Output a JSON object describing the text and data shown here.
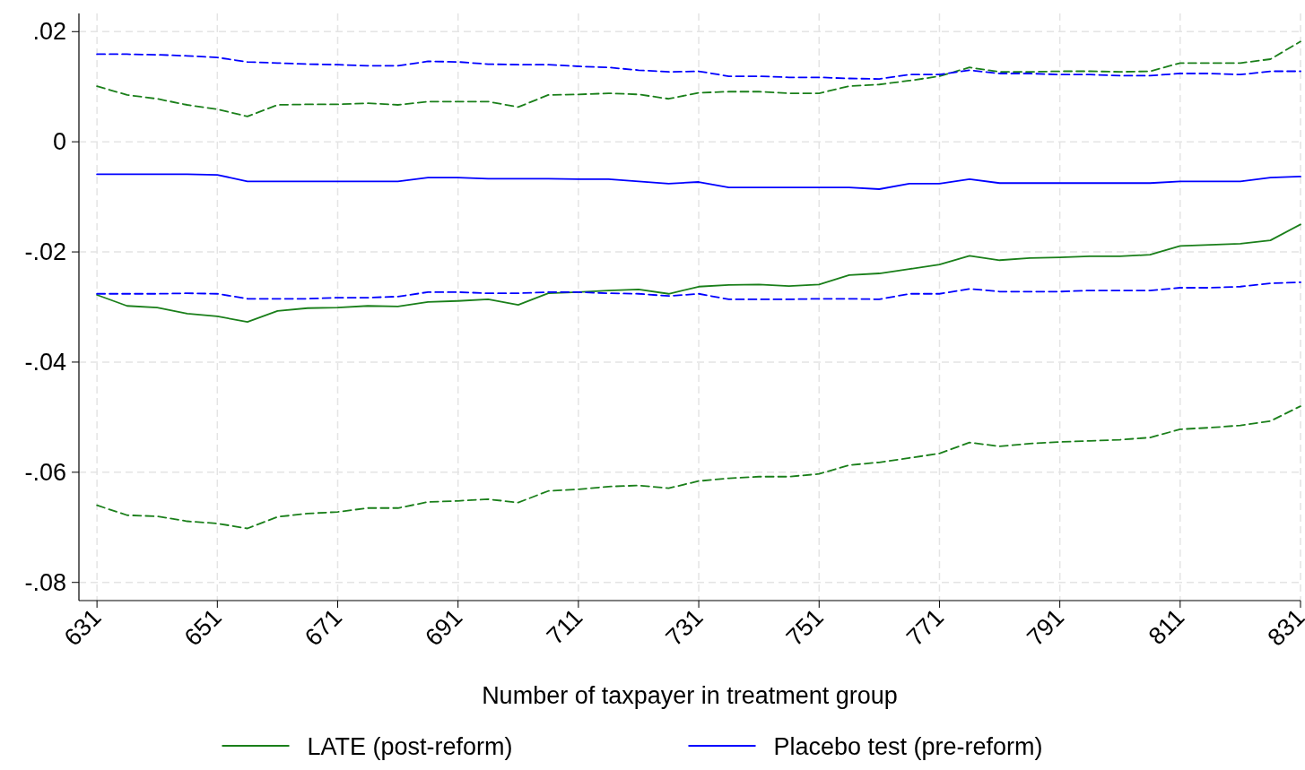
{
  "chart_data": {
    "type": "line",
    "xlabel": "Number of taxpayer in treatment group",
    "x": [
      631,
      636,
      641,
      646,
      651,
      656,
      661,
      666,
      671,
      676,
      681,
      686,
      691,
      696,
      701,
      706,
      711,
      716,
      721,
      726,
      731,
      736,
      741,
      746,
      751,
      756,
      761,
      766,
      771,
      776,
      781,
      786,
      791,
      796,
      801,
      806,
      811,
      816,
      821,
      826,
      831
    ],
    "xlim": [
      628,
      831
    ],
    "xticks": [
      631,
      651,
      671,
      691,
      711,
      731,
      751,
      771,
      791,
      811,
      831
    ],
    "ylim": [
      -0.0833,
      0.0233
    ],
    "yticks": [
      {
        "value": 0.02,
        "label": ".02"
      },
      {
        "value": 0,
        "label": "0"
      },
      {
        "value": -0.02,
        "label": "-.02"
      },
      {
        "value": -0.04,
        "label": "-.04"
      },
      {
        "value": -0.06,
        "label": "-.06"
      },
      {
        "value": -0.08,
        "label": "-.08"
      }
    ],
    "grid": true,
    "legend": "bottom",
    "series": [
      {
        "name": "LATE (post-reform)",
        "color": "#1a7f1a",
        "line_style": "solid",
        "values": [
          -0.0278,
          -0.0298,
          -0.0301,
          -0.0312,
          -0.0317,
          -0.0327,
          -0.0307,
          -0.0302,
          -0.0301,
          -0.0298,
          -0.0299,
          -0.0291,
          -0.0289,
          -0.0286,
          -0.0296,
          -0.0275,
          -0.0273,
          -0.027,
          -0.0268,
          -0.0276,
          -0.0263,
          -0.026,
          -0.0259,
          -0.0262,
          -0.0259,
          -0.0242,
          -0.0239,
          -0.0231,
          -0.0223,
          -0.0207,
          -0.0215,
          -0.0211,
          -0.021,
          -0.0208,
          -0.0208,
          -0.0205,
          -0.0189,
          -0.0187,
          -0.0185,
          -0.0179,
          -0.015
        ]
      },
      {
        "color": "#1a7f1a",
        "line_style": "dashed",
        "values": [
          0.0101,
          0.0085,
          0.0078,
          0.0067,
          0.0059,
          0.0046,
          0.0067,
          0.0068,
          0.0068,
          0.007,
          0.0067,
          0.0073,
          0.0073,
          0.0073,
          0.0063,
          0.0085,
          0.0086,
          0.0088,
          0.0086,
          0.0078,
          0.0089,
          0.0091,
          0.0091,
          0.0088,
          0.0088,
          0.0101,
          0.0104,
          0.0111,
          0.0119,
          0.0135,
          0.0127,
          0.0127,
          0.0128,
          0.0128,
          0.0127,
          0.0128,
          0.0143,
          0.0143,
          0.0143,
          0.015,
          0.0182
        ]
      },
      {
        "color": "#1a7f1a",
        "line_style": "dashed",
        "values": [
          -0.066,
          -0.0678,
          -0.068,
          -0.0689,
          -0.0693,
          -0.0702,
          -0.0681,
          -0.0675,
          -0.0672,
          -0.0665,
          -0.0665,
          -0.0654,
          -0.0652,
          -0.0649,
          -0.0655,
          -0.0634,
          -0.0631,
          -0.0626,
          -0.0624,
          -0.0629,
          -0.0616,
          -0.0611,
          -0.0608,
          -0.0608,
          -0.0603,
          -0.0587,
          -0.0582,
          -0.0574,
          -0.0566,
          -0.0546,
          -0.0553,
          -0.0548,
          -0.0545,
          -0.0543,
          -0.0541,
          -0.0537,
          -0.0522,
          -0.0519,
          -0.0515,
          -0.0507,
          -0.048
        ]
      },
      {
        "name": "Placebo test (pre-reform)",
        "color": "#0000ff",
        "line_style": "solid",
        "values": [
          -0.0059,
          -0.0059,
          -0.0059,
          -0.0059,
          -0.006,
          -0.0072,
          -0.0072,
          -0.0072,
          -0.0072,
          -0.0072,
          -0.0072,
          -0.0065,
          -0.0065,
          -0.0067,
          -0.0067,
          -0.0067,
          -0.0068,
          -0.0068,
          -0.0072,
          -0.0076,
          -0.0073,
          -0.0083,
          -0.0083,
          -0.0083,
          -0.0083,
          -0.0083,
          -0.0086,
          -0.0076,
          -0.0076,
          -0.0068,
          -0.0075,
          -0.0075,
          -0.0075,
          -0.0075,
          -0.0075,
          -0.0075,
          -0.0072,
          -0.0072,
          -0.0072,
          -0.0065,
          -0.0063
        ]
      },
      {
        "color": "#0000ff",
        "line_style": "dashed",
        "values": [
          0.0159,
          0.0159,
          0.0158,
          0.0156,
          0.0153,
          0.0145,
          0.0143,
          0.0141,
          0.014,
          0.0138,
          0.0138,
          0.0146,
          0.0145,
          0.0141,
          0.014,
          0.014,
          0.0137,
          0.0135,
          0.013,
          0.0127,
          0.0128,
          0.0119,
          0.0119,
          0.0117,
          0.0117,
          0.0115,
          0.0114,
          0.0122,
          0.0122,
          0.013,
          0.0124,
          0.0124,
          0.0122,
          0.0122,
          0.012,
          0.012,
          0.0124,
          0.0124,
          0.0122,
          0.0128,
          0.0128
        ]
      },
      {
        "color": "#0000ff",
        "line_style": "dashed",
        "values": [
          -0.0276,
          -0.0276,
          -0.0276,
          -0.0275,
          -0.0276,
          -0.0285,
          -0.0285,
          -0.0285,
          -0.0283,
          -0.0283,
          -0.0281,
          -0.0273,
          -0.0273,
          -0.0275,
          -0.0275,
          -0.0273,
          -0.0273,
          -0.0275,
          -0.0276,
          -0.028,
          -0.0276,
          -0.0286,
          -0.0286,
          -0.0286,
          -0.0285,
          -0.0285,
          -0.0286,
          -0.0276,
          -0.0276,
          -0.0267,
          -0.0272,
          -0.0272,
          -0.0272,
          -0.027,
          -0.027,
          -0.027,
          -0.0265,
          -0.0265,
          -0.0263,
          -0.0257,
          -0.0255
        ]
      }
    ]
  }
}
